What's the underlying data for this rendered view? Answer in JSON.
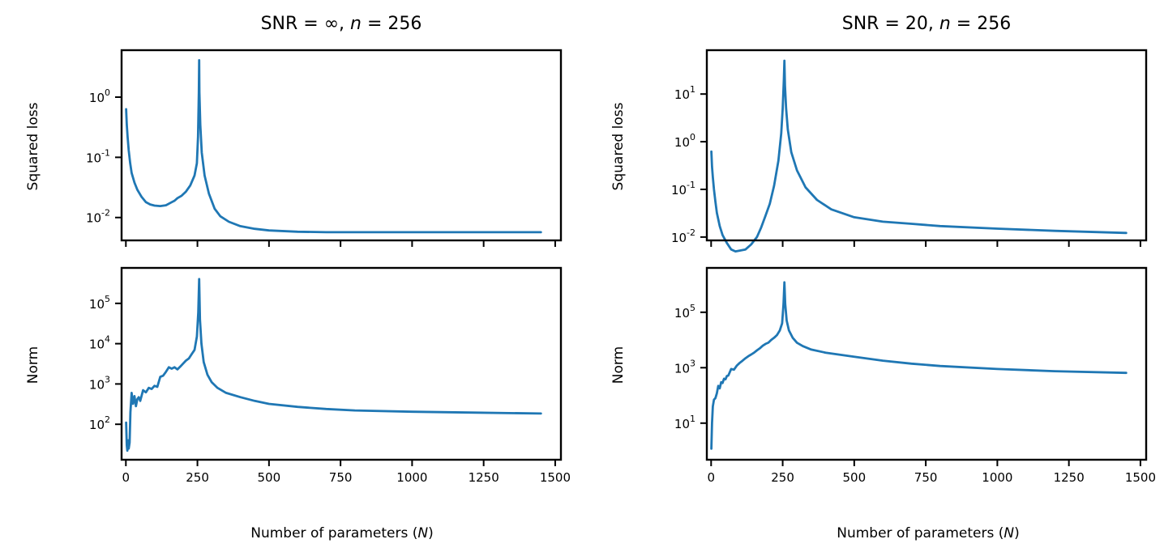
{
  "figure": {
    "background": "#ffffff"
  },
  "chart_data": [
    {
      "id": "tl",
      "type": "line",
      "column_title": "SNR = ∞, n = 256",
      "title_parts": {
        "pre": "SNR = ∞, ",
        "var": "n",
        "post": " = 256"
      },
      "ylabel": "Squared loss",
      "xlabel": "",
      "yscale": "log",
      "xlim": [
        -15,
        1520
      ],
      "ylim_log10": [
        -2.38,
        0.78
      ],
      "yticks_exp": [
        "-2",
        "-1",
        "0"
      ],
      "xticks": [
        0,
        250,
        500,
        750,
        1000,
        1250,
        1500
      ],
      "show_xtick_labels": false,
      "grid": false,
      "color": "#1f77b4",
      "x": [
        1,
        3,
        6,
        10,
        15,
        20,
        30,
        40,
        55,
        70,
        85,
        100,
        120,
        140,
        160,
        170,
        180,
        195,
        210,
        225,
        240,
        248,
        252,
        255,
        256,
        257,
        260,
        265,
        275,
        290,
        310,
        330,
        360,
        400,
        450,
        500,
        600,
        700,
        800,
        1000,
        1200,
        1450
      ],
      "y": [
        0.63,
        0.35,
        0.22,
        0.13,
        0.08,
        0.055,
        0.038,
        0.029,
        0.022,
        0.018,
        0.0165,
        0.0158,
        0.0155,
        0.016,
        0.018,
        0.019,
        0.021,
        0.023,
        0.027,
        0.034,
        0.05,
        0.08,
        0.22,
        1.2,
        4.1,
        1.2,
        0.35,
        0.12,
        0.05,
        0.025,
        0.014,
        0.0105,
        0.0085,
        0.0072,
        0.0065,
        0.0061,
        0.0058,
        0.0057,
        0.0057,
        0.0057,
        0.0057,
        0.0057
      ]
    },
    {
      "id": "bl",
      "type": "line",
      "column_title": "",
      "ylabel": "Norm",
      "xlabel": "Number of parameters (N)",
      "xlabel_parts": {
        "pre": "Number of parameters (",
        "var": "N",
        "post": ")"
      },
      "yscale": "log",
      "xlim": [
        -15,
        1520
      ],
      "ylim_log10": [
        1.12,
        5.88
      ],
      "yticks_exp": [
        "2",
        "3",
        "4",
        "5"
      ],
      "xticks": [
        0,
        250,
        500,
        750,
        1000,
        1250,
        1500
      ],
      "show_xtick_labels": true,
      "grid": false,
      "color": "#1f77b4",
      "x": [
        1,
        3,
        5,
        8,
        10,
        13,
        16,
        20,
        25,
        30,
        35,
        40,
        45,
        50,
        60,
        70,
        80,
        90,
        100,
        110,
        120,
        130,
        140,
        150,
        160,
        170,
        180,
        190,
        200,
        210,
        220,
        230,
        240,
        248,
        253,
        256,
        259,
        264,
        272,
        285,
        300,
        320,
        350,
        400,
        450,
        500,
        600,
        700,
        800,
        1000,
        1200,
        1450
      ],
      "y": [
        110,
        30,
        22,
        40,
        25,
        35,
        200,
        600,
        320,
        500,
        280,
        420,
        470,
        380,
        700,
        620,
        800,
        750,
        900,
        850,
        1500,
        1600,
        2000,
        2600,
        2400,
        2600,
        2300,
        2700,
        3200,
        3800,
        4300,
        5500,
        7000,
        15000,
        60000,
        400000,
        40000,
        10000,
        3500,
        1700,
        1100,
        800,
        600,
        470,
        380,
        320,
        270,
        240,
        220,
        205,
        195,
        185
      ]
    },
    {
      "id": "tr",
      "type": "line",
      "column_title": "SNR = 20, n = 256",
      "title_parts": {
        "pre": "SNR = 20, ",
        "var": "n",
        "post": " = 256"
      },
      "ylabel": "Squared loss",
      "xlabel": "",
      "yscale": "log",
      "xlim": [
        -15,
        1520
      ],
      "ylim_log10": [
        -2.07,
        1.92
      ],
      "yticks_exp": [
        "-2",
        "-1",
        "0",
        "1"
      ],
      "xticks": [
        0,
        250,
        500,
        750,
        1000,
        1250,
        1500
      ],
      "show_xtick_labels": false,
      "grid": false,
      "color": "#1f77b4",
      "x": [
        1,
        3,
        6,
        10,
        15,
        20,
        30,
        40,
        55,
        70,
        85,
        100,
        120,
        140,
        160,
        175,
        190,
        205,
        220,
        235,
        245,
        250,
        254,
        256,
        258,
        262,
        268,
        280,
        300,
        330,
        370,
        420,
        500,
        600,
        700,
        800,
        1000,
        1200,
        1450
      ],
      "y": [
        0.62,
        0.3,
        0.18,
        0.1,
        0.055,
        0.032,
        0.017,
        0.011,
        0.0075,
        0.0055,
        0.005,
        0.0052,
        0.0055,
        0.007,
        0.01,
        0.016,
        0.028,
        0.05,
        0.12,
        0.4,
        1.5,
        5,
        20,
        50,
        15,
        5,
        1.8,
        0.6,
        0.25,
        0.11,
        0.06,
        0.038,
        0.026,
        0.021,
        0.019,
        0.017,
        0.015,
        0.0135,
        0.0122
      ]
    },
    {
      "id": "br",
      "type": "line",
      "column_title": "",
      "ylabel": "Norm",
      "xlabel": "Number of parameters (N)",
      "xlabel_parts": {
        "pre": "Number of parameters (",
        "var": "N",
        "post": ")"
      },
      "yscale": "log",
      "xlim": [
        -15,
        1520
      ],
      "ylim_log10": [
        -0.32,
        6.6
      ],
      "yticks_exp": [
        "1",
        "3",
        "5"
      ],
      "xticks": [
        0,
        250,
        500,
        750,
        1000,
        1250,
        1500
      ],
      "show_xtick_labels": true,
      "grid": false,
      "color": "#1f77b4",
      "x": [
        1,
        3,
        6,
        10,
        15,
        20,
        25,
        30,
        35,
        40,
        45,
        50,
        55,
        60,
        70,
        80,
        90,
        100,
        110,
        120,
        130,
        140,
        150,
        160,
        170,
        180,
        190,
        200,
        210,
        220,
        230,
        240,
        248,
        253,
        256,
        259,
        264,
        272,
        285,
        300,
        320,
        350,
        400,
        500,
        600,
        700,
        800,
        1000,
        1200,
        1450
      ],
      "y": [
        1.2,
        10,
        40,
        70,
        80,
        120,
        220,
        180,
        300,
        280,
        400,
        380,
        500,
        520,
        900,
        850,
        1200,
        1500,
        1800,
        2200,
        2600,
        3000,
        3500,
        4200,
        5000,
        6200,
        7200,
        8000,
        10000,
        12000,
        15000,
        22000,
        40000,
        200000,
        1200000,
        200000,
        50000,
        22000,
        12000,
        8000,
        6000,
        4500,
        3500,
        2500,
        1800,
        1400,
        1150,
        900,
        750,
        650
      ]
    }
  ]
}
